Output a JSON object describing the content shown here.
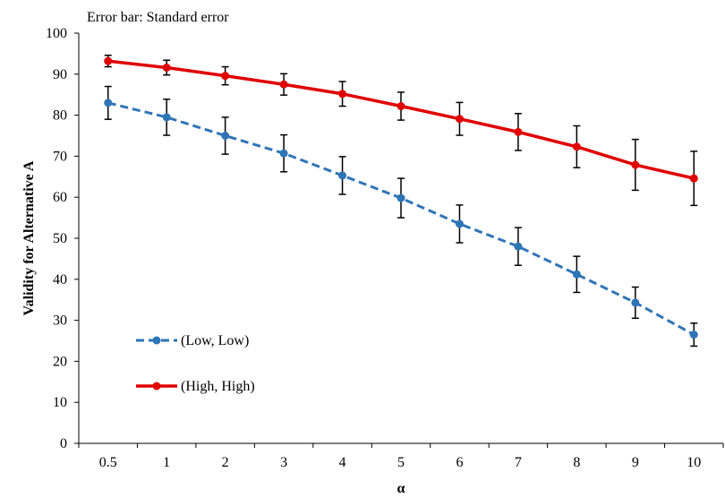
{
  "chart_data": {
    "type": "line",
    "annotation": "Error bar: Standard error",
    "xlabel": "α",
    "ylabel": "Validity for Alternative A",
    "categories": [
      "0.5",
      "1",
      "2",
      "3",
      "4",
      "5",
      "6",
      "7",
      "8",
      "9",
      "10"
    ],
    "ylim": [
      0,
      100
    ],
    "yticks": [
      0,
      10,
      20,
      30,
      40,
      50,
      60,
      70,
      80,
      90,
      100
    ],
    "grid": false,
    "legend_position": "lower-left",
    "series": [
      {
        "name": "(Low, Low)",
        "color": "#2E75B6",
        "line_style": "dashed",
        "values": [
          83.0,
          79.5,
          75.0,
          70.7,
          65.3,
          59.8,
          53.5,
          48.0,
          41.2,
          34.3,
          26.5
        ],
        "errors": [
          4.0,
          4.4,
          4.5,
          4.5,
          4.6,
          4.8,
          4.6,
          4.6,
          4.4,
          3.8,
          2.8
        ]
      },
      {
        "name": "(High, High)",
        "color": "#E00000",
        "line_style": "solid",
        "values": [
          93.2,
          91.6,
          89.6,
          87.5,
          85.2,
          82.2,
          79.1,
          75.9,
          72.3,
          67.9,
          64.6
        ],
        "errors": [
          1.4,
          1.8,
          2.2,
          2.6,
          3.0,
          3.4,
          4.0,
          4.5,
          5.1,
          6.2,
          6.6
        ]
      }
    ]
  }
}
